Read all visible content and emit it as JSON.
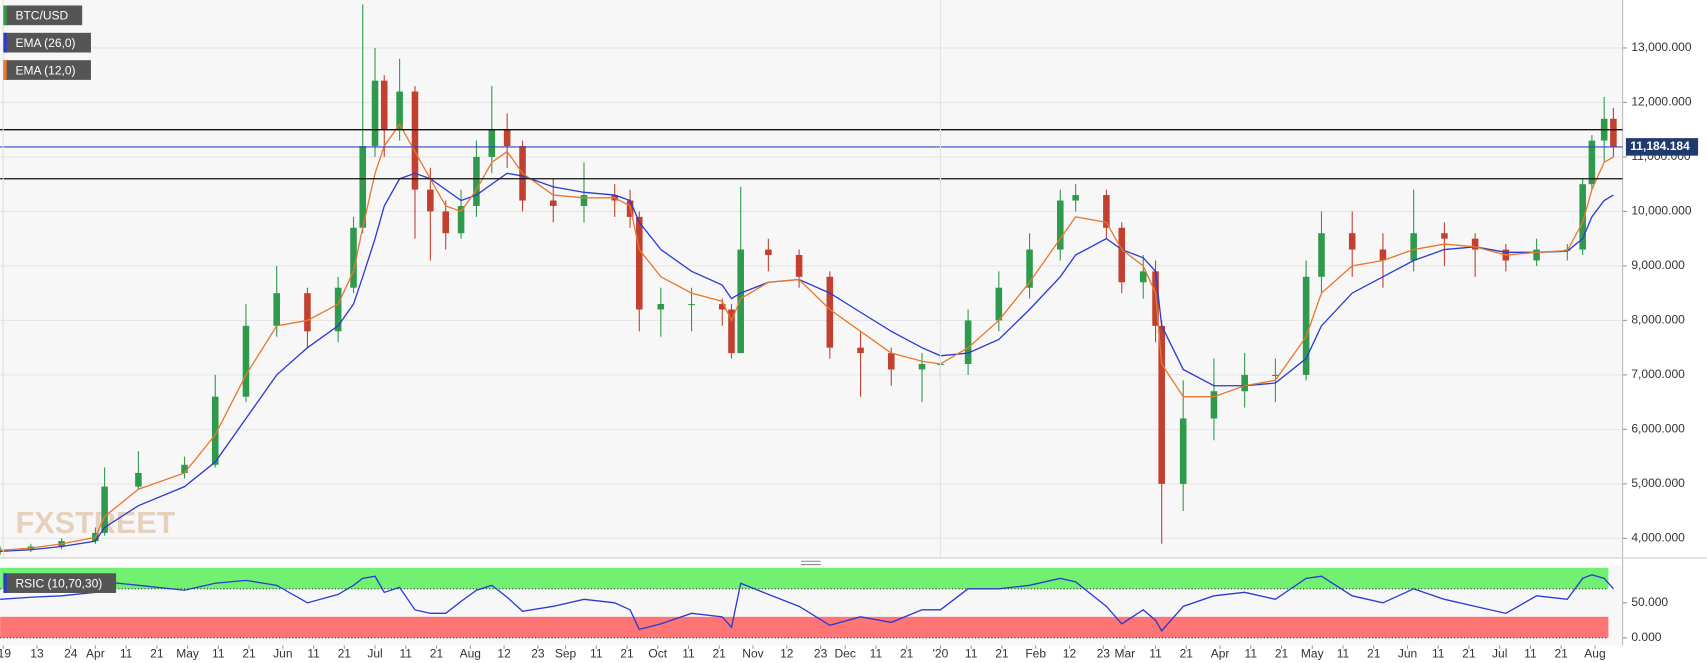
{
  "chart_data": [
    {
      "type": "candlestick",
      "title": "BTC/USD",
      "watermark": "FXSTREET",
      "x": [
        0,
        10,
        20,
        31,
        34,
        45,
        60,
        70,
        80,
        90,
        100,
        110,
        115,
        118,
        122,
        125,
        130,
        135,
        140,
        145,
        150,
        155,
        160,
        165,
        170,
        180,
        190,
        200,
        205,
        208,
        215,
        225,
        235,
        238,
        241,
        250,
        260,
        270,
        280,
        290,
        300,
        306,
        315,
        325,
        335,
        345,
        350,
        360,
        365,
        372,
        376,
        378,
        385,
        395,
        405,
        415,
        425,
        430,
        440,
        450,
        460,
        470,
        480,
        490,
        500,
        510,
        515,
        518,
        522,
        525
      ],
      "open": [
        3750,
        3800,
        3850,
        3950,
        4100,
        4950,
        5200,
        5350,
        6600,
        7900,
        8500,
        7800,
        8600,
        9700,
        11200,
        12400,
        11500,
        12200,
        10400,
        10000,
        9600,
        10100,
        11000,
        11500,
        11200,
        10200,
        10100,
        10300,
        10200,
        9900,
        8200,
        8300,
        8300,
        8200,
        7400,
        9300,
        9200,
        8800,
        7500,
        7400,
        7100,
        7200,
        7200,
        8000,
        8600,
        9300,
        10200,
        10300,
        9700,
        8700,
        8900,
        7900,
        5000,
        6200,
        6700,
        7000,
        7000,
        8800,
        9600,
        9300,
        9100,
        9600,
        9500,
        9300,
        9100,
        9300,
        9300,
        10500,
        11300,
        11700
      ],
      "high": [
        3850,
        3900,
        4000,
        4200,
        5300,
        5600,
        5500,
        7000,
        8300,
        9000,
        8600,
        8800,
        9900,
        13800,
        13000,
        12500,
        12800,
        12300,
        10800,
        10200,
        10400,
        11300,
        12300,
        11800,
        11300,
        10600,
        10900,
        10500,
        10400,
        10000,
        8600,
        8600,
        8400,
        8300,
        10450,
        9500,
        9300,
        8900,
        7800,
        7500,
        7400,
        7500,
        8200,
        8900,
        9600,
        10400,
        10500,
        10400,
        9800,
        9200,
        9100,
        8000,
        6900,
        7300,
        7400,
        7300,
        9100,
        10000,
        10000,
        9600,
        10400,
        9800,
        9600,
        9400,
        9500,
        9400,
        10600,
        11400,
        12100,
        11900
      ],
      "low": [
        3700,
        3750,
        3800,
        3900,
        4050,
        4900,
        5100,
        5300,
        6500,
        7700,
        7500,
        7600,
        8500,
        9600,
        11000,
        11000,
        11300,
        9500,
        9100,
        9300,
        9500,
        9900,
        10700,
        10800,
        10000,
        9800,
        9800,
        9900,
        9700,
        7800,
        7700,
        7800,
        7900,
        7300,
        7400,
        8900,
        8600,
        7300,
        6600,
        6800,
        6500,
        6900,
        7000,
        7800,
        8400,
        9100,
        10000,
        9500,
        8500,
        8400,
        7600,
        3900,
        4500,
        5800,
        6400,
        6500,
        6900,
        8500,
        8800,
        8600,
        8900,
        9000,
        8800,
        8900,
        9000,
        9100,
        9200,
        10400,
        10900,
        11000
      ],
      "close": [
        3800,
        3850,
        3950,
        4100,
        4950,
        5200,
        5350,
        6600,
        7900,
        8500,
        7800,
        8600,
        9700,
        11200,
        12400,
        11500,
        12200,
        10400,
        10000,
        9600,
        10100,
        11000,
        11500,
        11200,
        10200,
        10100,
        10300,
        10200,
        9900,
        8200,
        8300,
        8300,
        8200,
        7400,
        9300,
        9200,
        8800,
        7500,
        7400,
        7100,
        7200,
        7200,
        8000,
        8600,
        9300,
        10200,
        10300,
        9700,
        8700,
        8900,
        7900,
        5000,
        6200,
        6700,
        7000,
        7000,
        8800,
        9600,
        9300,
        9100,
        9600,
        9500,
        9300,
        9100,
        9300,
        9300,
        10500,
        11300,
        11700,
        11184
      ],
      "up_color": "#2f9a4c",
      "down_color": "#c2402f",
      "series": [
        {
          "name": "EMA (26,0)",
          "color": "#2a3bd0",
          "values": [
            3760,
            3790,
            3850,
            3950,
            4200,
            4600,
            4950,
            5400,
            6200,
            7000,
            7500,
            7900,
            8300,
            8800,
            9500,
            10100,
            10600,
            10700,
            10600,
            10400,
            10200,
            10300,
            10500,
            10700,
            10650,
            10450,
            10350,
            10300,
            10200,
            9800,
            9300,
            8900,
            8650,
            8400,
            8500,
            8700,
            8750,
            8500,
            8150,
            7800,
            7500,
            7350,
            7400,
            7650,
            8200,
            8800,
            9200,
            9500,
            9300,
            9150,
            8900,
            7900,
            7100,
            6800,
            6800,
            6850,
            7300,
            7900,
            8500,
            8800,
            9100,
            9300,
            9350,
            9250,
            9250,
            9270,
            9500,
            9900,
            10200,
            10300
          ]
        },
        {
          "name": "EMA (12,0)",
          "color": "#e8782e",
          "values": [
            3780,
            3820,
            3900,
            4020,
            4400,
            4900,
            5200,
            5900,
            7000,
            7900,
            8000,
            8300,
            8900,
            9700,
            10700,
            11200,
            11600,
            11100,
            10600,
            10100,
            10000,
            10400,
            10900,
            11100,
            10700,
            10300,
            10250,
            10250,
            10100,
            9300,
            8800,
            8500,
            8350,
            8000,
            8400,
            8700,
            8750,
            8200,
            7800,
            7400,
            7250,
            7200,
            7500,
            8000,
            8700,
            9500,
            9900,
            9800,
            9300,
            9000,
            8500,
            7200,
            6600,
            6600,
            6800,
            6900,
            7700,
            8500,
            9000,
            9100,
            9300,
            9400,
            9350,
            9200,
            9250,
            9280,
            9800,
            10400,
            10900,
            11000
          ]
        }
      ],
      "xlim": [
        0,
        528
      ],
      "ylim": [
        3640,
        13880
      ],
      "yticks": [
        {
          "value": 4000,
          "label": "4,000.000"
        },
        {
          "value": 5000,
          "label": "5,000.000"
        },
        {
          "value": 6000,
          "label": "6,000.000"
        },
        {
          "value": 7000,
          "label": "7,000.000"
        },
        {
          "value": 8000,
          "label": "8,000.000"
        },
        {
          "value": 9000,
          "label": "9,000.000"
        },
        {
          "value": 10000,
          "label": "10,000.000"
        },
        {
          "value": 11000,
          "label": "11,000.000"
        },
        {
          "value": 12000,
          "label": "12,000.000"
        },
        {
          "value": 13000,
          "label": "13,000.000"
        }
      ],
      "levels": [
        11500,
        10600
      ],
      "level_color": "#111111",
      "last_price": {
        "value": 11184.184,
        "label": "11,184.184"
      },
      "last_price_color": "#1f3a6e"
    },
    {
      "type": "line",
      "x": [
        0,
        10,
        20,
        31,
        34,
        45,
        60,
        70,
        80,
        90,
        100,
        110,
        115,
        118,
        122,
        125,
        130,
        135,
        140,
        145,
        150,
        155,
        160,
        165,
        170,
        180,
        190,
        200,
        205,
        208,
        215,
        225,
        235,
        238,
        241,
        250,
        260,
        270,
        280,
        290,
        300,
        306,
        315,
        325,
        335,
        345,
        350,
        360,
        365,
        372,
        376,
        378,
        385,
        395,
        405,
        415,
        425,
        430,
        440,
        450,
        460,
        470,
        480,
        490,
        500,
        510,
        515,
        518,
        522,
        525
      ],
      "series": [
        {
          "name": "RSIC (10,70,30)",
          "color": "#2a3bd0",
          "values": [
            55,
            58,
            60,
            65,
            80,
            75,
            68,
            78,
            82,
            75,
            50,
            62,
            75,
            85,
            88,
            65,
            72,
            40,
            35,
            35,
            52,
            68,
            75,
            58,
            38,
            45,
            55,
            50,
            40,
            12,
            20,
            35,
            30,
            15,
            78,
            62,
            45,
            18,
            30,
            22,
            40,
            40,
            70,
            70,
            75,
            85,
            80,
            45,
            20,
            40,
            25,
            10,
            45,
            60,
            65,
            55,
            85,
            88,
            60,
            50,
            70,
            55,
            45,
            35,
            60,
            55,
            85,
            90,
            85,
            70
          ]
        }
      ],
      "bands": [
        {
          "from": 70,
          "to": 100,
          "color": "#72f072"
        },
        {
          "from": 0,
          "to": 30,
          "color": "#ff7474"
        }
      ],
      "xlim": [
        0,
        528
      ],
      "ylim": [
        0,
        100
      ],
      "yticks": [
        {
          "value": 0,
          "label": "0.000"
        },
        {
          "value": 50,
          "label": "50.000"
        }
      ],
      "xticks": [
        {
          "value": 1,
          "label": "'19"
        },
        {
          "value": 12,
          "label": "13"
        },
        {
          "value": 23,
          "label": "24"
        },
        {
          "value": 31,
          "label": "Apr"
        },
        {
          "value": 41,
          "label": "11"
        },
        {
          "value": 51,
          "label": "21"
        },
        {
          "value": 61,
          "label": "May"
        },
        {
          "value": 71,
          "label": "11"
        },
        {
          "value": 81,
          "label": "21"
        },
        {
          "value": 92,
          "label": "Jun"
        },
        {
          "value": 102,
          "label": "11"
        },
        {
          "value": 112,
          "label": "21"
        },
        {
          "value": 122,
          "label": "Jul"
        },
        {
          "value": 132,
          "label": "11"
        },
        {
          "value": 142,
          "label": "21"
        },
        {
          "value": 153,
          "label": "Aug"
        },
        {
          "value": 164,
          "label": "12"
        },
        {
          "value": 175,
          "label": "23"
        },
        {
          "value": 184,
          "label": "Sep"
        },
        {
          "value": 194,
          "label": "11"
        },
        {
          "value": 204,
          "label": "21"
        },
        {
          "value": 214,
          "label": "Oct"
        },
        {
          "value": 224,
          "label": "11"
        },
        {
          "value": 234,
          "label": "21"
        },
        {
          "value": 245,
          "label": "Nov"
        },
        {
          "value": 256,
          "label": "12"
        },
        {
          "value": 267,
          "label": "23"
        },
        {
          "value": 275,
          "label": "Dec"
        },
        {
          "value": 285,
          "label": "11"
        },
        {
          "value": 295,
          "label": "21"
        },
        {
          "value": 306,
          "label": "'20"
        },
        {
          "value": 316,
          "label": "11"
        },
        {
          "value": 326,
          "label": "21"
        },
        {
          "value": 337,
          "label": "Feb"
        },
        {
          "value": 348,
          "label": "12"
        },
        {
          "value": 359,
          "label": "23"
        },
        {
          "value": 366,
          "label": "Mar"
        },
        {
          "value": 376,
          "label": "11"
        },
        {
          "value": 386,
          "label": "21"
        },
        {
          "value": 397,
          "label": "Apr"
        },
        {
          "value": 407,
          "label": "11"
        },
        {
          "value": 417,
          "label": "21"
        },
        {
          "value": 427,
          "label": "May"
        },
        {
          "value": 437,
          "label": "11"
        },
        {
          "value": 447,
          "label": "21"
        },
        {
          "value": 458,
          "label": "Jun"
        },
        {
          "value": 468,
          "label": "11"
        },
        {
          "value": 478,
          "label": "21"
        },
        {
          "value": 488,
          "label": "Jul"
        },
        {
          "value": 498,
          "label": "11"
        },
        {
          "value": 508,
          "label": "21"
        },
        {
          "value": 519,
          "label": "Aug"
        }
      ]
    }
  ]
}
